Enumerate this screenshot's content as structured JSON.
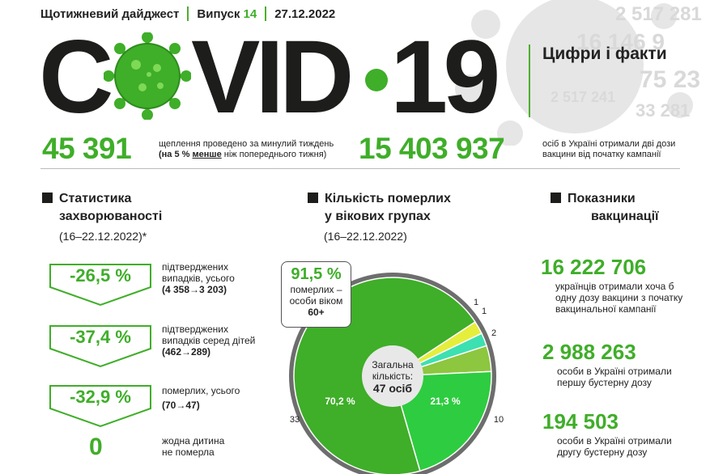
{
  "header": {
    "digest": "Щотижневий дайджест",
    "issue_label": "Випуск",
    "issue_number": "14",
    "date": "27.12.2022"
  },
  "title": {
    "letters_left": "C",
    "letters_mid": "VID",
    "letters_right": "19",
    "subtitle": "Цифри і факти"
  },
  "background_numbers": [
    "2 517 281",
    "16 146 9",
    "75 23",
    "2 517 241",
    "33 281"
  ],
  "top_stats": {
    "weekly_vaccinations": "45 391",
    "weekly_note_1": "щеплення проведено за минулий тиждень",
    "weekly_note_2_a": "(на 5 % ",
    "weekly_note_2_b": "менше",
    "weekly_note_2_c": " ніж попереднього тижня)",
    "fully_vaccinated": "15 403 937",
    "fully_note_1": "осіб в Україні отримали дві дози",
    "fully_note_2": "вакцини від початку кампанії"
  },
  "morbidity": {
    "title_1": "Статистика",
    "title_2": "захворюваності",
    "period": "(16–22.12.2022)*",
    "items": [
      {
        "value": "-26,5 %",
        "line1": "підтверджених",
        "line2": "випадків, усього",
        "line3": "(4 358→3 203)"
      },
      {
        "value": "-37,4 %",
        "line1": "підтверджених",
        "line2": "випадків серед дітей",
        "line3": "(462→289)"
      },
      {
        "value": "-32,9 %",
        "line1": "померлих, усього",
        "line2": "",
        "line3": "(70→47)"
      }
    ],
    "zero_value": "0",
    "zero_line1": "жодна дитина",
    "zero_line2": "не померла"
  },
  "deaths": {
    "title_1": "Кількість померлих",
    "title_2": "у вікових групах",
    "period": "(16–22.12.2022)",
    "callout_pct": "91,5 %",
    "callout_line1": "померлих –",
    "callout_line2": "особи віком",
    "callout_line3": "60+",
    "total_line1": "Загальна",
    "total_line2": "кількість:",
    "total_value": "47 осіб",
    "label_big": "70,2 %",
    "label_mid": "21,3 %",
    "count_33": "33",
    "count_10": "10",
    "count_2": "2",
    "count_1a": "1",
    "count_1b": "1"
  },
  "chart_data": {
    "type": "pie",
    "title": "Кількість померлих у вікових групах",
    "values": [
      33,
      10,
      2,
      1,
      1
    ],
    "labels": [
      "70,2 %",
      "21,3 %",
      "",
      "",
      ""
    ],
    "colors": [
      "#3fae29",
      "#2ecc40",
      "#8dc63f",
      "#3de0b0",
      "#e6ee3c"
    ]
  },
  "vaccination": {
    "title_1": "Показники",
    "title_2": "вакцинації",
    "items": [
      {
        "value": "16 222 706",
        "line1": "українців отримали хоча б",
        "line2": "одну дозу вакцини з початку",
        "line3": "вакцинальної кампанії"
      },
      {
        "value": "2 988 263",
        "line1": "особи в Україні отримали",
        "line2": "першу бустерну дозу",
        "line3": ""
      },
      {
        "value": "194 503",
        "line1": "особи в Україні отримали",
        "line2": "другу бустерну дозу",
        "line3": ""
      }
    ]
  }
}
